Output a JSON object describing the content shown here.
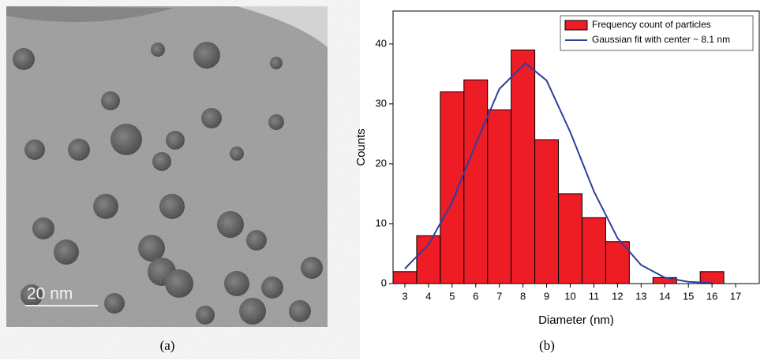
{
  "figure_a": {
    "scale_bar": "20 nm",
    "caption": "(a)"
  },
  "chart_data": {
    "type": "histogram",
    "caption": "(b)",
    "x_label": "Diameter (nm)",
    "y_label": "Counts",
    "bar_name": "Frequency count of particles",
    "color": "#ee1c25",
    "bins": [
      2.5,
      3.5,
      4.5,
      5.5,
      6.5,
      7.5,
      8.5,
      9.5,
      10.5,
      11.5,
      12.5,
      13.5,
      14.5,
      15.5,
      16.5
    ],
    "values": [
      2,
      8,
      32,
      34,
      29,
      39,
      24,
      15,
      11,
      7,
      0,
      1,
      0,
      2
    ],
    "series": [
      {
        "name": "Gaussian fit with center ~ 8.1 nm",
        "color": "#2e3f9e",
        "x": [
          3,
          4,
          5,
          6,
          7,
          8.1,
          9,
          10,
          11,
          12,
          13,
          14,
          15,
          16
        ],
        "values": [
          2.5,
          6.5,
          13.6,
          23.3,
          32.5,
          36.8,
          33.9,
          25.3,
          15.4,
          7.6,
          3.1,
          1.0,
          0.3,
          0.1
        ]
      }
    ],
    "xlim": [
      2.5,
      18
    ],
    "xticks": [
      3,
      4,
      5,
      6,
      7,
      8,
      9,
      10,
      11,
      12,
      13,
      14,
      15,
      16,
      17
    ],
    "ylim": [
      0,
      45.5
    ],
    "yticks": [
      0,
      10,
      20,
      30,
      40
    ],
    "legend": "upper right"
  }
}
